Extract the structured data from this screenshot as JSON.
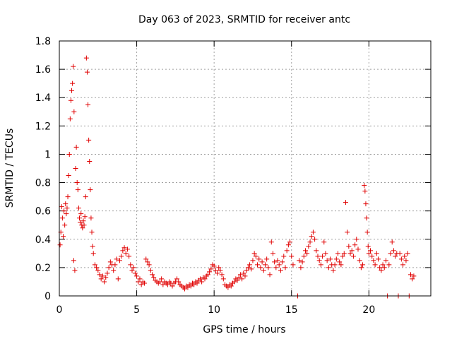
{
  "chart_data": {
    "type": "scatter",
    "title": "Day 063 of 2023, SRMTID for receiver antc",
    "xlabel": "GPS time / hours",
    "ylabel": "SRMTID / TECUs",
    "xlim": [
      0,
      24
    ],
    "ylim": [
      0,
      1.8
    ],
    "grid": true,
    "marker": "+",
    "marker_color": "#e00000",
    "x_ticks": [
      0,
      5,
      10,
      15,
      20
    ],
    "x_tick_labels": [
      "0",
      "5",
      "10",
      "15",
      "20"
    ],
    "y_ticks": [
      0,
      0.2,
      0.4,
      0.6,
      0.8,
      1.0,
      1.2,
      1.4,
      1.6,
      1.8
    ],
    "y_tick_labels": [
      "0",
      "0.2",
      "0.4",
      "0.6",
      "0.8",
      "1",
      "1.2",
      "1.4",
      "1.6",
      "1.8"
    ],
    "series": [
      {
        "name": "SRMTID",
        "points": [
          [
            0.05,
            0.36
          ],
          [
            0.1,
            0.45
          ],
          [
            0.15,
            0.63
          ],
          [
            0.2,
            0.55
          ],
          [
            0.25,
            0.42
          ],
          [
            0.3,
            0.6
          ],
          [
            0.35,
            0.5
          ],
          [
            0.4,
            0.65
          ],
          [
            0.45,
            0.58
          ],
          [
            0.5,
            0.62
          ],
          [
            0.55,
            0.7
          ],
          [
            0.6,
            0.85
          ],
          [
            0.65,
            1.0
          ],
          [
            0.7,
            1.25
          ],
          [
            0.75,
            1.38
          ],
          [
            0.8,
            1.45
          ],
          [
            0.85,
            1.5
          ],
          [
            0.9,
            1.62
          ],
          [
            0.93,
            0.25
          ],
          [
            0.95,
            1.3
          ],
          [
            1.0,
            0.18
          ],
          [
            1.05,
            0.9
          ],
          [
            1.1,
            1.05
          ],
          [
            1.15,
            0.8
          ],
          [
            1.2,
            0.75
          ],
          [
            1.25,
            0.62
          ],
          [
            1.3,
            0.55
          ],
          [
            1.35,
            0.52
          ],
          [
            1.4,
            0.58
          ],
          [
            1.45,
            0.5
          ],
          [
            1.5,
            0.48
          ],
          [
            1.55,
            0.53
          ],
          [
            1.6,
            0.5
          ],
          [
            1.65,
            0.56
          ],
          [
            1.7,
            0.7
          ],
          [
            1.75,
            1.68
          ],
          [
            1.8,
            1.58
          ],
          [
            1.85,
            1.35
          ],
          [
            1.9,
            1.1
          ],
          [
            1.95,
            0.95
          ],
          [
            2.0,
            0.75
          ],
          [
            2.05,
            0.55
          ],
          [
            2.1,
            0.45
          ],
          [
            2.15,
            0.35
          ],
          [
            2.2,
            0.3
          ],
          [
            2.3,
            0.22
          ],
          [
            2.4,
            0.2
          ],
          [
            2.5,
            0.18
          ],
          [
            2.6,
            0.15
          ],
          [
            2.7,
            0.12
          ],
          [
            2.8,
            0.14
          ],
          [
            2.9,
            0.1
          ],
          [
            3.0,
            0.13
          ],
          [
            3.1,
            0.16
          ],
          [
            3.2,
            0.2
          ],
          [
            3.3,
            0.24
          ],
          [
            3.4,
            0.22
          ],
          [
            3.5,
            0.18
          ],
          [
            3.6,
            0.22
          ],
          [
            3.7,
            0.26
          ],
          [
            3.8,
            0.12
          ],
          [
            3.9,
            0.25
          ],
          [
            4.0,
            0.28
          ],
          [
            4.1,
            0.32
          ],
          [
            4.2,
            0.34
          ],
          [
            4.3,
            0.3
          ],
          [
            4.4,
            0.33
          ],
          [
            4.5,
            0.28
          ],
          [
            4.6,
            0.22
          ],
          [
            4.7,
            0.18
          ],
          [
            4.8,
            0.2
          ],
          [
            4.9,
            0.16
          ],
          [
            5.0,
            0.14
          ],
          [
            5.1,
            0.1
          ],
          [
            5.2,
            0.12
          ],
          [
            5.3,
            0.08
          ],
          [
            5.4,
            0.1
          ],
          [
            5.5,
            0.09
          ],
          [
            5.6,
            0.26
          ],
          [
            5.7,
            0.24
          ],
          [
            5.8,
            0.22
          ],
          [
            5.9,
            0.18
          ],
          [
            6.0,
            0.15
          ],
          [
            6.1,
            0.13
          ],
          [
            6.2,
            0.11
          ],
          [
            6.3,
            0.1
          ],
          [
            6.4,
            0.09
          ],
          [
            6.5,
            0.1
          ],
          [
            6.6,
            0.12
          ],
          [
            6.7,
            0.08
          ],
          [
            6.8,
            0.1
          ],
          [
            6.9,
            0.09
          ],
          [
            7.0,
            0.08
          ],
          [
            7.1,
            0.1
          ],
          [
            7.2,
            0.09
          ],
          [
            7.3,
            0.07
          ],
          [
            7.4,
            0.09
          ],
          [
            7.5,
            0.1
          ],
          [
            7.6,
            0.12
          ],
          [
            7.7,
            0.1
          ],
          [
            7.8,
            0.08
          ],
          [
            7.9,
            0.07
          ],
          [
            8.0,
            0.06
          ],
          [
            8.1,
            0.05
          ],
          [
            8.2,
            0.07
          ],
          [
            8.3,
            0.06
          ],
          [
            8.4,
            0.08
          ],
          [
            8.5,
            0.07
          ],
          [
            8.6,
            0.09
          ],
          [
            8.7,
            0.08
          ],
          [
            8.8,
            0.1
          ],
          [
            8.9,
            0.09
          ],
          [
            9.0,
            0.11
          ],
          [
            9.1,
            0.12
          ],
          [
            9.2,
            0.1
          ],
          [
            9.3,
            0.13
          ],
          [
            9.4,
            0.12
          ],
          [
            9.5,
            0.14
          ],
          [
            9.6,
            0.15
          ],
          [
            9.7,
            0.17
          ],
          [
            9.8,
            0.19
          ],
          [
            9.9,
            0.22
          ],
          [
            10.0,
            0.21
          ],
          [
            10.1,
            0.18
          ],
          [
            10.2,
            0.16
          ],
          [
            10.3,
            0.2
          ],
          [
            10.4,
            0.18
          ],
          [
            10.5,
            0.15
          ],
          [
            10.6,
            0.12
          ],
          [
            10.7,
            0.08
          ],
          [
            10.8,
            0.07
          ],
          [
            10.9,
            0.06
          ],
          [
            11.0,
            0.08
          ],
          [
            11.1,
            0.07
          ],
          [
            11.2,
            0.09
          ],
          [
            11.3,
            0.1
          ],
          [
            11.4,
            0.12
          ],
          [
            11.5,
            0.11
          ],
          [
            11.6,
            0.13
          ],
          [
            11.7,
            0.15
          ],
          [
            11.8,
            0.12
          ],
          [
            11.9,
            0.16
          ],
          [
            12.0,
            0.14
          ],
          [
            12.1,
            0.18
          ],
          [
            12.2,
            0.2
          ],
          [
            12.3,
            0.22
          ],
          [
            12.4,
            0.19
          ],
          [
            12.5,
            0.25
          ],
          [
            12.6,
            0.3
          ],
          [
            12.7,
            0.28
          ],
          [
            12.8,
            0.22
          ],
          [
            12.9,
            0.26
          ],
          [
            13.0,
            0.2
          ],
          [
            13.1,
            0.24
          ],
          [
            13.2,
            0.18
          ],
          [
            13.3,
            0.22
          ],
          [
            13.4,
            0.26
          ],
          [
            13.5,
            0.2
          ],
          [
            13.6,
            0.15
          ],
          [
            13.7,
            0.38
          ],
          [
            13.8,
            0.3
          ],
          [
            13.9,
            0.24
          ],
          [
            14.0,
            0.2
          ],
          [
            14.1,
            0.25
          ],
          [
            14.2,
            0.22
          ],
          [
            14.3,
            0.18
          ],
          [
            14.4,
            0.24
          ],
          [
            14.5,
            0.28
          ],
          [
            14.6,
            0.2
          ],
          [
            14.7,
            0.32
          ],
          [
            14.8,
            0.36
          ],
          [
            14.9,
            0.38
          ],
          [
            15.0,
            0.28
          ],
          [
            15.1,
            0.22
          ],
          [
            15.4,
            0.0
          ],
          [
            15.5,
            0.25
          ],
          [
            15.6,
            0.2
          ],
          [
            15.7,
            0.24
          ],
          [
            15.8,
            0.28
          ],
          [
            15.9,
            0.32
          ],
          [
            16.0,
            0.3
          ],
          [
            16.1,
            0.35
          ],
          [
            16.2,
            0.38
          ],
          [
            16.3,
            0.42
          ],
          [
            16.4,
            0.45
          ],
          [
            16.5,
            0.4
          ],
          [
            16.6,
            0.32
          ],
          [
            16.7,
            0.28
          ],
          [
            16.8,
            0.25
          ],
          [
            16.9,
            0.22
          ],
          [
            17.0,
            0.28
          ],
          [
            17.1,
            0.38
          ],
          [
            17.2,
            0.3
          ],
          [
            17.3,
            0.25
          ],
          [
            17.4,
            0.2
          ],
          [
            17.5,
            0.26
          ],
          [
            17.6,
            0.22
          ],
          [
            17.7,
            0.18
          ],
          [
            17.8,
            0.22
          ],
          [
            17.9,
            0.26
          ],
          [
            18.0,
            0.3
          ],
          [
            18.1,
            0.24
          ],
          [
            18.2,
            0.22
          ],
          [
            18.3,
            0.28
          ],
          [
            18.4,
            0.3
          ],
          [
            18.5,
            0.66
          ],
          [
            18.6,
            0.45
          ],
          [
            18.7,
            0.35
          ],
          [
            18.8,
            0.3
          ],
          [
            18.9,
            0.32
          ],
          [
            19.0,
            0.28
          ],
          [
            19.1,
            0.36
          ],
          [
            19.2,
            0.4
          ],
          [
            19.3,
            0.33
          ],
          [
            19.4,
            0.25
          ],
          [
            19.5,
            0.2
          ],
          [
            19.6,
            0.22
          ],
          [
            19.7,
            0.78
          ],
          [
            19.75,
            0.74
          ],
          [
            19.8,
            0.65
          ],
          [
            19.85,
            0.55
          ],
          [
            19.9,
            0.45
          ],
          [
            19.95,
            0.35
          ],
          [
            20.0,
            0.3
          ],
          [
            20.1,
            0.32
          ],
          [
            20.2,
            0.28
          ],
          [
            20.3,
            0.25
          ],
          [
            20.4,
            0.22
          ],
          [
            20.5,
            0.3
          ],
          [
            20.6,
            0.26
          ],
          [
            20.7,
            0.2
          ],
          [
            20.8,
            0.18
          ],
          [
            20.9,
            0.22
          ],
          [
            21.0,
            0.2
          ],
          [
            21.1,
            0.25
          ],
          [
            21.2,
            0.0
          ],
          [
            21.3,
            0.22
          ],
          [
            21.4,
            0.3
          ],
          [
            21.5,
            0.38
          ],
          [
            21.6,
            0.32
          ],
          [
            21.7,
            0.28
          ],
          [
            21.8,
            0.3
          ],
          [
            21.9,
            0.0
          ],
          [
            22.0,
            0.3
          ],
          [
            22.1,
            0.26
          ],
          [
            22.2,
            0.22
          ],
          [
            22.3,
            0.28
          ],
          [
            22.4,
            0.25
          ],
          [
            22.5,
            0.3
          ],
          [
            22.6,
            0.0
          ],
          [
            22.7,
            0.15
          ],
          [
            22.8,
            0.12
          ],
          [
            22.9,
            0.14
          ]
        ]
      }
    ]
  }
}
